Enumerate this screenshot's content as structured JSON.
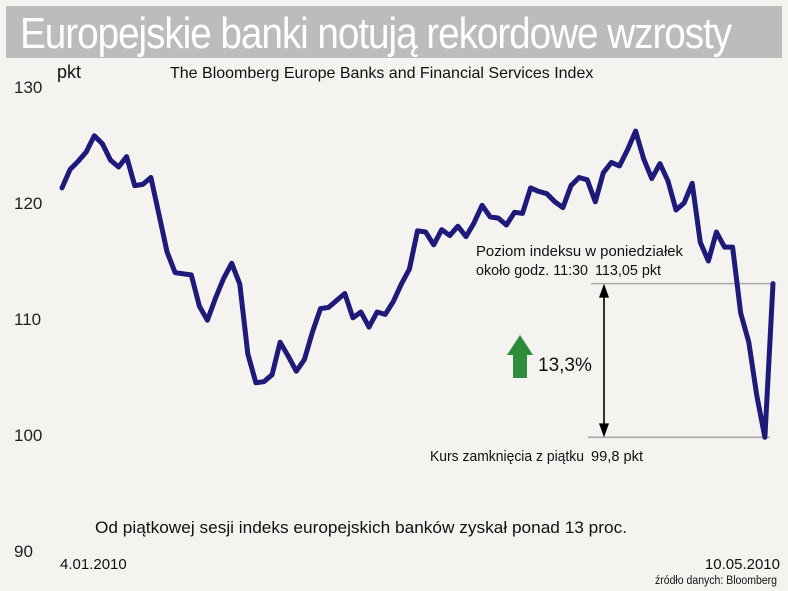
{
  "title": "Europejskie banki notują rekordowe wzrosty",
  "chart_data": {
    "type": "line",
    "subtitle": "The Bloomberg Europe Banks and Financial Services Index",
    "ylabel": "pkt",
    "ylim": [
      90,
      130
    ],
    "yticks": [
      90,
      100,
      110,
      120,
      130
    ],
    "x_start_label": "4.01.2010",
    "x_end_label": "10.05.2010",
    "series": [
      {
        "color": "#1d1a7a",
        "values": [
          121.3,
          122.9,
          123.6,
          124.4,
          125.8,
          125.1,
          123.7,
          123.1,
          124.0,
          121.5,
          121.6,
          122.2,
          119.0,
          115.8,
          114.0,
          113.9,
          113.8,
          111.1,
          109.9,
          111.8,
          113.5,
          114.8,
          113.0,
          107.0,
          104.5,
          104.6,
          105.2,
          108.0,
          106.8,
          105.5,
          106.5,
          108.9,
          110.9,
          111.0,
          111.6,
          112.2,
          110.1,
          110.6,
          109.3,
          110.6,
          110.4,
          111.5,
          113.0,
          114.3,
          117.6,
          117.5,
          116.4,
          117.7,
          117.2,
          118.0,
          117.1,
          118.3,
          119.8,
          118.8,
          118.7,
          118.1,
          119.2,
          119.1,
          121.3,
          121.0,
          120.8,
          120.1,
          119.6,
          121.5,
          122.2,
          122.0,
          120.1,
          122.6,
          123.5,
          123.2,
          124.6,
          126.2,
          123.8,
          122.1,
          123.4,
          121.9,
          119.4,
          120.0,
          121.7,
          116.6,
          115.0,
          117.5,
          116.2,
          116.2,
          110.5,
          108.0,
          103.4,
          99.8,
          113.05
        ]
      }
    ],
    "annotations": {
      "level_label_line1": "Poziom indeksu w poniedziałek",
      "level_label_line2": "około godz. 11:30",
      "level_value": "113,05 pkt",
      "change_label": "13,3%",
      "close_label": "Kurs zamknięcia z piątku",
      "close_value": "99,8 pkt",
      "note": "Od piątkowej sesji indeks europejskich banków zyskał ponad 13 proc.",
      "source": "źródło danych: Bloomberg",
      "high_value": 113.05,
      "low_value": 99.8
    }
  }
}
